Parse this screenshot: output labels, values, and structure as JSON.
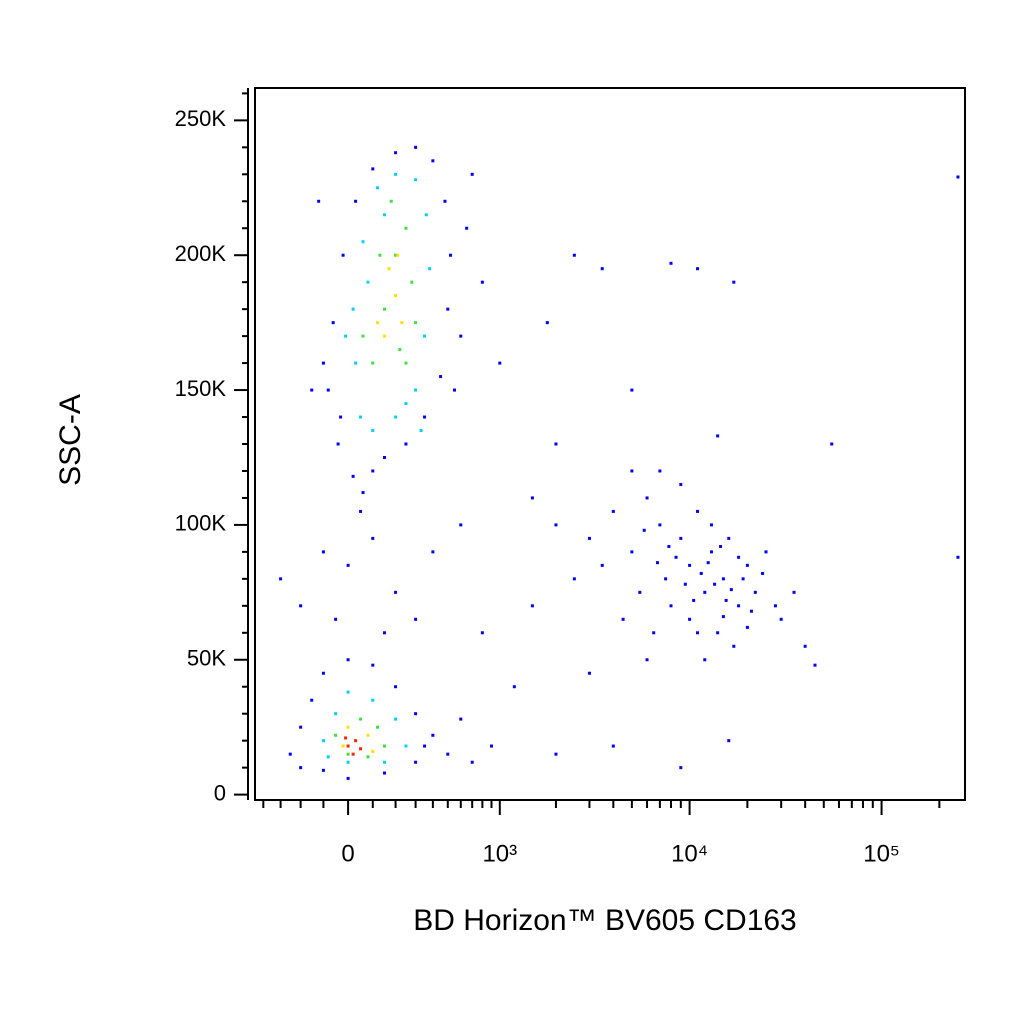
{
  "chart_data": {
    "type": "scatter",
    "x_label": "BD Horizon™ BV605 CD163",
    "y_label": "SSC-A",
    "xscale": "biexponential",
    "xlim": [
      -454,
      272000
    ],
    "ylim": [
      -2000,
      262000
    ],
    "xticks": [
      0,
      {
        "value": 1000,
        "label": "10³"
      },
      {
        "value": 10000,
        "label": "10⁴"
      },
      {
        "value": 100000,
        "label": "10⁵"
      }
    ],
    "xminorticks": [
      -400,
      -300,
      -200,
      -100,
      100,
      200,
      300,
      400,
      500,
      600,
      700,
      800,
      900,
      2000,
      3000,
      4000,
      5000,
      6000,
      7000,
      8000,
      9000,
      20000,
      30000,
      40000,
      50000,
      60000,
      70000,
      80000,
      90000,
      200000
    ],
    "yticks": [
      0,
      {
        "value": 50000,
        "label": "50K"
      },
      {
        "value": 100000,
        "label": "100K"
      },
      {
        "value": 150000,
        "label": "150K"
      },
      {
        "value": 200000,
        "label": "200K"
      },
      {
        "value": 250000,
        "label": "250K"
      }
    ],
    "yminorticks": [
      10000,
      20000,
      30000,
      40000,
      60000,
      70000,
      80000,
      90000,
      110000,
      120000,
      130000,
      140000,
      160000,
      170000,
      180000,
      190000,
      210000,
      220000,
      230000,
      240000,
      260000
    ],
    "series": [
      {
        "color": "#0000ff",
        "x": [
          -80,
          -40,
          20,
          60,
          100,
          150,
          250,
          350,
          450,
          500,
          520,
          480,
          400,
          300,
          200,
          100,
          30,
          -20,
          -60,
          -100,
          -30,
          600,
          650,
          700,
          800,
          550,
          -150,
          -120,
          -250,
          -200,
          -150,
          -100,
          0,
          100,
          200,
          300,
          350,
          300,
          150,
          0,
          -100,
          -200,
          400,
          500,
          700,
          900,
          600,
          -300,
          -200,
          -100,
          0,
          100,
          200,
          300,
          150,
          -50,
          50,
          400,
          600,
          800,
          1200,
          1500,
          2000,
          2500,
          1800,
          1000,
          3500,
          5000,
          8000,
          11000,
          17000,
          14000,
          55000,
          250000,
          250000,
          2000,
          4000,
          9000,
          16000,
          3000,
          6000,
          3000,
          3500,
          4000,
          5000,
          5500,
          6000,
          7000,
          7500,
          8000,
          9000,
          10000,
          10000,
          11000,
          12000,
          13000,
          14000,
          15000,
          16000,
          18000,
          20000,
          22000,
          25000,
          28000,
          30000,
          35000,
          40000,
          6500,
          4500,
          2500,
          1500,
          12000,
          9000,
          7000,
          45000,
          17000,
          2000,
          5000,
          8500,
          11500,
          13500,
          15500,
          9500,
          12500,
          14500,
          16500,
          19000,
          21000,
          24000,
          10500,
          7800,
          6800,
          5800,
          13000,
          18000,
          11000,
          15000,
          20000
        ],
        "y": [
          150000,
          130000,
          118000,
          112000,
          120000,
          125000,
          130000,
          140000,
          155000,
          180000,
          200000,
          220000,
          235000,
          240000,
          238000,
          232000,
          220000,
          200000,
          175000,
          160000,
          140000,
          170000,
          210000,
          230000,
          190000,
          150000,
          150000,
          220000,
          15000,
          25000,
          35000,
          45000,
          50000,
          48000,
          40000,
          30000,
          18000,
          12000,
          8000,
          6000,
          9000,
          10000,
          22000,
          15000,
          12000,
          18000,
          28000,
          80000,
          70000,
          90000,
          85000,
          95000,
          75000,
          65000,
          60000,
          65000,
          105000,
          90000,
          100000,
          60000,
          40000,
          110000,
          130000,
          200000,
          175000,
          160000,
          195000,
          150000,
          197000,
          195000,
          190000,
          133000,
          130000,
          88000,
          229000,
          15000,
          18000,
          10000,
          20000,
          45000,
          50000,
          95000,
          85000,
          105000,
          90000,
          75000,
          110000,
          100000,
          80000,
          70000,
          95000,
          85000,
          65000,
          105000,
          75000,
          90000,
          60000,
          80000,
          95000,
          70000,
          85000,
          75000,
          90000,
          70000,
          65000,
          75000,
          55000,
          60000,
          65000,
          80000,
          70000,
          50000,
          115000,
          120000,
          48000,
          55000,
          100000,
          120000,
          88000,
          82000,
          78000,
          72000,
          78000,
          86000,
          92000,
          76000,
          80000,
          68000,
          82000,
          72000,
          92000,
          86000,
          98000,
          100000,
          88000,
          60000,
          66000,
          62000
        ]
      },
      {
        "color": "#00d0ff",
        "x": [
          50,
          100,
          200,
          300,
          350,
          380,
          360,
          300,
          200,
          120,
          60,
          20,
          30,
          250,
          150,
          80,
          -10,
          330,
          -100,
          -50,
          0,
          100,
          200,
          250,
          150,
          0,
          -80
        ],
        "y": [
          140000,
          135000,
          140000,
          150000,
          170000,
          195000,
          215000,
          228000,
          230000,
          225000,
          205000,
          180000,
          160000,
          145000,
          215000,
          190000,
          170000,
          135000,
          20000,
          30000,
          38000,
          35000,
          28000,
          18000,
          12000,
          12000,
          14000
        ]
      },
      {
        "color": "#40e040",
        "x": [
          100,
          150,
          200,
          250,
          280,
          220,
          130,
          180,
          300,
          60,
          250,
          -50,
          50,
          120,
          150,
          0,
          80
        ],
        "y": [
          160000,
          180000,
          200000,
          210000,
          190000,
          165000,
          200000,
          220000,
          175000,
          170000,
          160000,
          22000,
          28000,
          25000,
          18000,
          15000,
          14000
        ]
      },
      {
        "color": "#ffe000",
        "x": [
          150,
          200,
          230,
          170,
          210,
          120,
          0,
          80,
          -20,
          100
        ],
        "y": [
          170000,
          185000,
          175000,
          195000,
          200000,
          175000,
          25000,
          22000,
          18000,
          16000
        ]
      },
      {
        "color": "#ff2000",
        "x": [
          0,
          30,
          50,
          -10,
          20
        ],
        "y": [
          18000,
          20000,
          17000,
          21000,
          15000
        ]
      }
    ]
  }
}
